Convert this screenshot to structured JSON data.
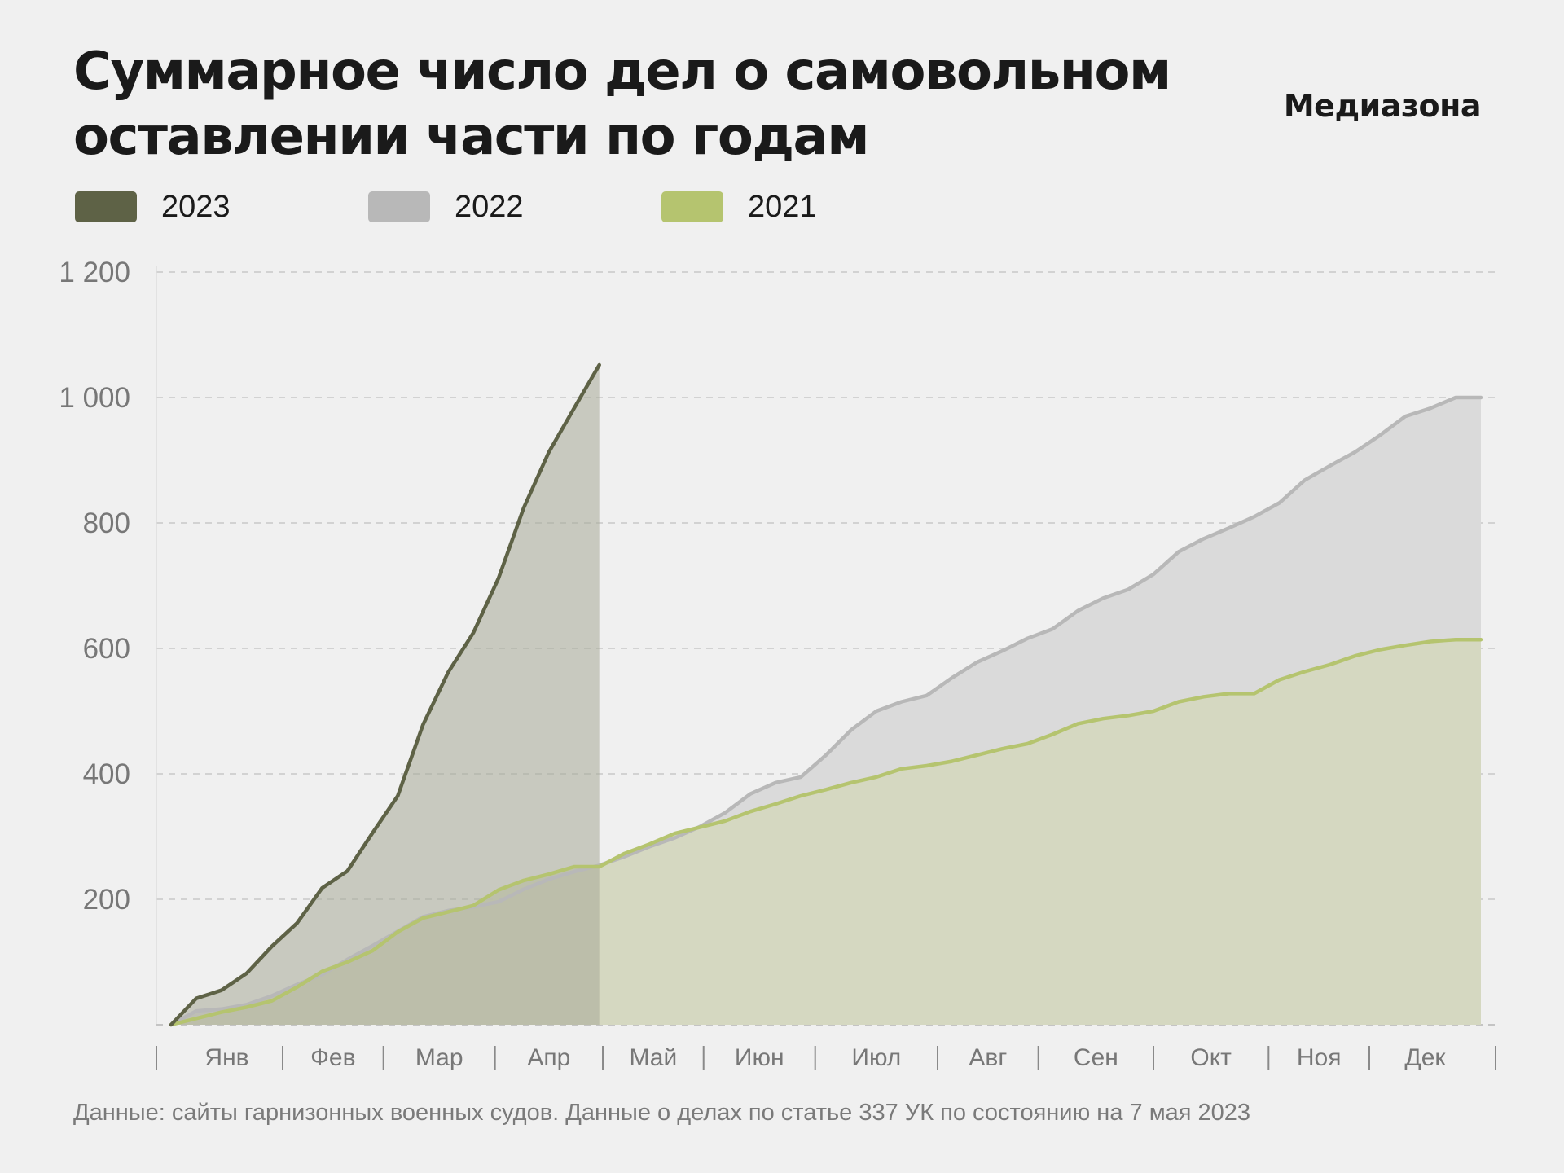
{
  "title": {
    "line1": "Суммарное число дел о самовольном",
    "line2": "оставлении части по годам"
  },
  "brand": "Медиазона",
  "source": "Данные: сайты гарнизонных военных судов. Данные о делах по статье 337 УК по состоянию на 7 мая 2023",
  "colors": {
    "background": "#f0f0f0",
    "c2023_line": "#5e6246",
    "c2023_fill": "#a8aa97",
    "c2022_line": "#b8b8b8",
    "c2022_fill": "#dadada",
    "c2021_line": "#b5c46f",
    "c2021_fill": "#d3d7bc",
    "grid": "#c8c8c8",
    "axis_text": "#777777"
  },
  "legend": [
    {
      "label": "2023",
      "color": "#5e6246"
    },
    {
      "label": "2022",
      "color": "#b8b8b8"
    },
    {
      "label": "2021",
      "color": "#b5c46f"
    }
  ],
  "chart_data": {
    "type": "area",
    "title": "Суммарное число дел о самовольном оставлении части по годам",
    "xlabel": "",
    "ylabel": "",
    "x_unit": "week",
    "xlim": [
      0,
      52
    ],
    "ylim": [
      0,
      1200
    ],
    "yticks": [
      200,
      400,
      600,
      800,
      1000,
      1200
    ],
    "ytick_labels": [
      "200",
      "400",
      "600",
      "800",
      "1 000",
      "1 200"
    ],
    "grid": true,
    "legend_position": "top-left",
    "months": [
      {
        "label": "Янв",
        "start": 0,
        "end": 4.43
      },
      {
        "label": "Фев",
        "start": 4.43,
        "end": 8.43
      },
      {
        "label": "Мар",
        "start": 8.43,
        "end": 12.86
      },
      {
        "label": "Апр",
        "start": 12.86,
        "end": 17.14
      },
      {
        "label": "Май",
        "start": 17.14,
        "end": 21.14
      },
      {
        "label": "Июн",
        "start": 21.14,
        "end": 25.57
      },
      {
        "label": "Июл",
        "start": 25.57,
        "end": 30.43
      },
      {
        "label": "Авг",
        "start": 30.43,
        "end": 34.43
      },
      {
        "label": "Сен",
        "start": 34.43,
        "end": 39.0
      },
      {
        "label": "Окт",
        "start": 39.0,
        "end": 43.57
      },
      {
        "label": "Ноя",
        "start": 43.57,
        "end": 47.57
      },
      {
        "label": "Дек",
        "start": 47.57,
        "end": 52
      }
    ],
    "series": [
      {
        "name": "2021",
        "x": [
          0,
          1,
          2,
          3,
          4,
          5,
          6,
          7,
          8,
          9,
          10,
          11,
          12,
          13,
          14,
          15,
          16,
          17,
          18,
          19,
          20,
          21,
          22,
          23,
          24,
          25,
          26,
          27,
          28,
          29,
          30,
          31,
          32,
          33,
          34,
          35,
          36,
          37,
          38,
          39,
          40,
          41,
          42,
          43,
          44,
          45,
          46,
          47,
          48,
          49,
          50,
          51,
          52
        ],
        "values": [
          0,
          10,
          20,
          28,
          38,
          60,
          85,
          100,
          118,
          148,
          170,
          180,
          190,
          215,
          230,
          240,
          252,
          252,
          273,
          288,
          305,
          315,
          325,
          340,
          352,
          365,
          375,
          386,
          395,
          408,
          413,
          420,
          430,
          440,
          448,
          463,
          480,
          488,
          493,
          500,
          515,
          523,
          528,
          528,
          550,
          563,
          574,
          588,
          598,
          605,
          611,
          614,
          614
        ]
      },
      {
        "name": "2022",
        "x": [
          0,
          1,
          2,
          3,
          4,
          5,
          6,
          7,
          8,
          9,
          10,
          11,
          12,
          13,
          14,
          15,
          16,
          17,
          18,
          19,
          20,
          21,
          22,
          23,
          24,
          25,
          26,
          27,
          28,
          29,
          30,
          31,
          32,
          33,
          34,
          35,
          36,
          37,
          38,
          39,
          40,
          41,
          42,
          43,
          44,
          45,
          46,
          47,
          48,
          49,
          50,
          51,
          52
        ],
        "values": [
          0,
          22,
          25,
          32,
          46,
          64,
          80,
          104,
          126,
          149,
          172,
          182,
          188,
          196,
          216,
          232,
          244,
          254,
          268,
          284,
          298,
          316,
          338,
          368,
          386,
          395,
          430,
          470,
          500,
          515,
          525,
          553,
          578,
          596,
          616,
          631,
          660,
          680,
          694,
          718,
          754,
          775,
          792,
          810,
          832,
          868,
          891,
          913,
          940,
          970,
          983,
          1000,
          1000
        ]
      },
      {
        "name": "2023",
        "x": [
          0,
          1,
          2,
          3,
          4,
          5,
          6,
          7,
          8,
          9,
          10,
          11,
          12,
          13,
          14,
          15,
          16,
          17
        ],
        "values": [
          0,
          42,
          55,
          82,
          125,
          162,
          218,
          245,
          306,
          365,
          478,
          562,
          625,
          712,
          824,
          913,
          983,
          1052
        ]
      }
    ]
  }
}
